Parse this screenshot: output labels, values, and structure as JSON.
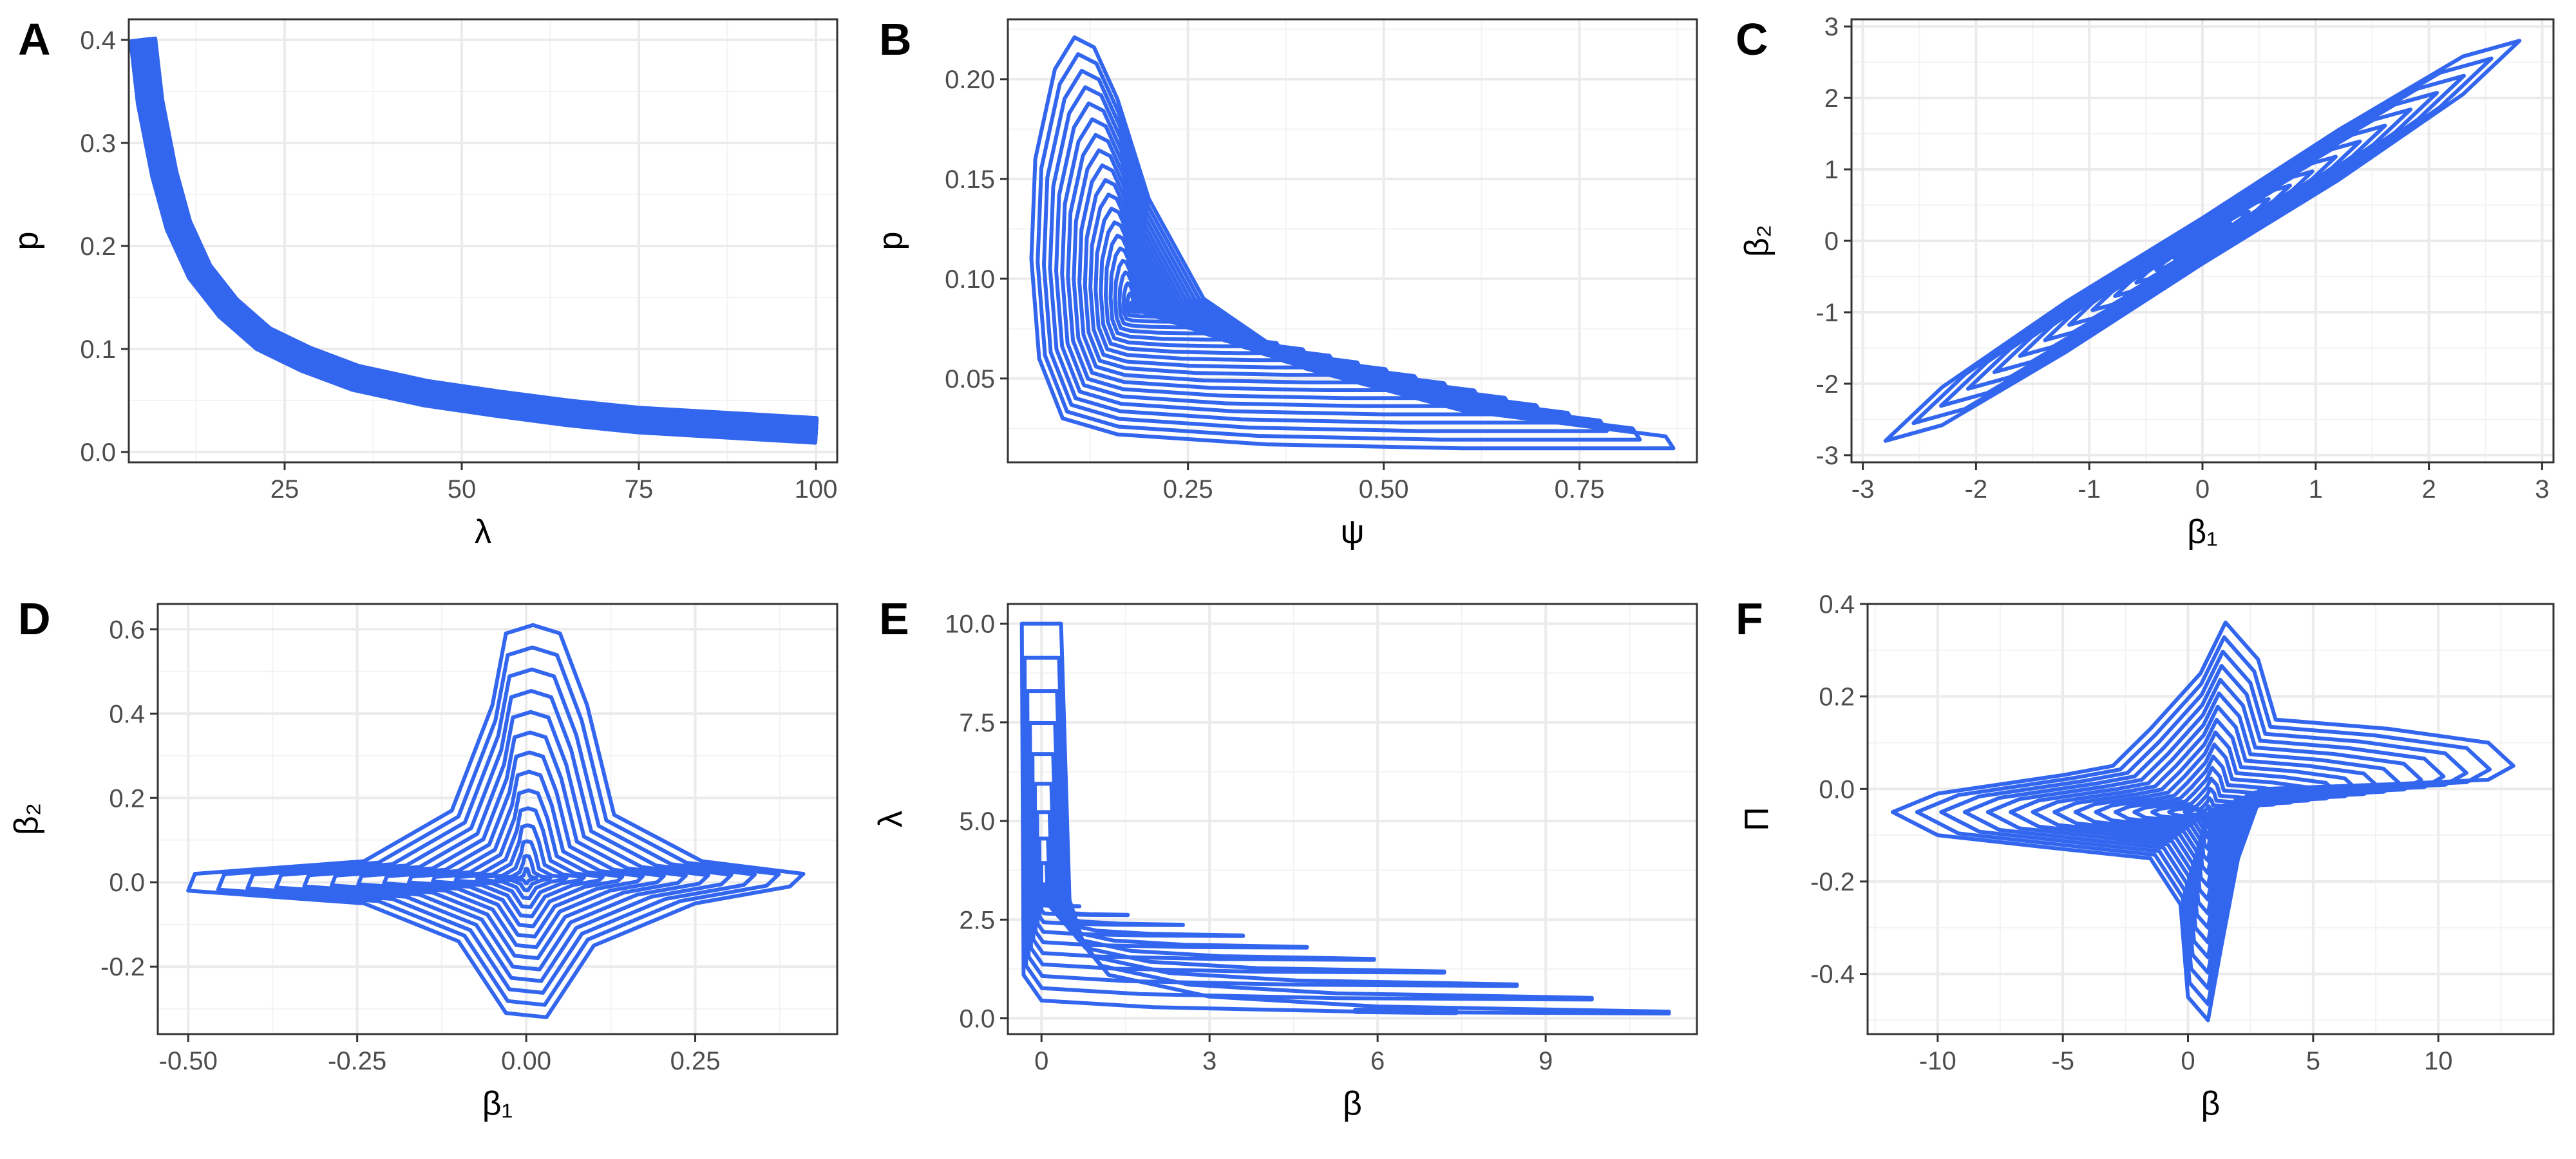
{
  "chart_data": [
    {
      "panel": "A",
      "type": "contour",
      "xlabel": "λ",
      "ylabel": "p",
      "xlim": [
        3,
        103
      ],
      "ylim": [
        -0.01,
        0.42
      ],
      "xticks": [
        25,
        50,
        75,
        100
      ],
      "xtick_labels": [
        "25",
        "50",
        "75",
        "100"
      ],
      "yticks": [
        0.0,
        0.1,
        0.2,
        0.3,
        0.4
      ],
      "ytick_labels": [
        "0.0",
        "0.1",
        "0.2",
        "0.3",
        "0.4"
      ],
      "grid": true,
      "shape": "band",
      "ridge": [
        [
          5,
          0.4
        ],
        [
          6,
          0.34
        ],
        [
          8,
          0.27
        ],
        [
          10,
          0.22
        ],
        [
          13,
          0.175
        ],
        [
          17,
          0.14
        ],
        [
          22,
          0.11
        ],
        [
          28,
          0.09
        ],
        [
          35,
          0.072
        ],
        [
          45,
          0.057
        ],
        [
          55,
          0.047
        ],
        [
          65,
          0.038
        ],
        [
          75,
          0.031
        ],
        [
          85,
          0.027
        ],
        [
          100,
          0.021
        ]
      ],
      "levels": 12,
      "band_width": 0.012,
      "color": "#3366ee"
    },
    {
      "panel": "B",
      "type": "contour",
      "xlabel": "ψ",
      "ylabel": "p",
      "xlim": [
        0.02,
        0.9
      ],
      "ylim": [
        0.008,
        0.23
      ],
      "xticks": [
        0.25,
        0.5,
        0.75
      ],
      "xtick_labels": [
        "0.25",
        "0.50",
        "0.75"
      ],
      "yticks": [
        0.05,
        0.1,
        0.15,
        0.2
      ],
      "ytick_labels": [
        "0.05",
        "0.10",
        "0.15",
        "0.20"
      ],
      "grid": true,
      "shape": "rings",
      "outer": [
        [
          0.105,
          0.221
        ],
        [
          0.08,
          0.205
        ],
        [
          0.055,
          0.16
        ],
        [
          0.05,
          0.11
        ],
        [
          0.06,
          0.06
        ],
        [
          0.09,
          0.03
        ],
        [
          0.16,
          0.022
        ],
        [
          0.35,
          0.017
        ],
        [
          0.6,
          0.015
        ],
        [
          0.87,
          0.015
        ],
        [
          0.86,
          0.021
        ],
        [
          0.6,
          0.034
        ],
        [
          0.4,
          0.055
        ],
        [
          0.27,
          0.09
        ],
        [
          0.2,
          0.14
        ],
        [
          0.16,
          0.19
        ],
        [
          0.13,
          0.216
        ]
      ],
      "center": [
        0.18,
        0.085
      ],
      "levels": 20,
      "color": "#3366ee"
    },
    {
      "panel": "C",
      "type": "contour",
      "xlabel": "β₁",
      "ylabel": "β₂",
      "xlim": [
        -3.1,
        3.1
      ],
      "ylim": [
        -3.1,
        3.1
      ],
      "xticks": [
        -3,
        -2,
        -1,
        0,
        1,
        2,
        3
      ],
      "xtick_labels": [
        "-3",
        "-2",
        "-1",
        "0",
        "1",
        "2",
        "3"
      ],
      "yticks": [
        -3,
        -2,
        -1,
        0,
        1,
        2,
        3
      ],
      "ytick_labels": [
        "-3",
        "-2",
        "-1",
        "0",
        "1",
        "2",
        "3"
      ],
      "grid": true,
      "shape": "rings",
      "outer": [
        [
          -2.8,
          -2.8
        ],
        [
          -2.3,
          -2.58
        ],
        [
          -1.2,
          -1.55
        ],
        [
          0,
          -0.32
        ],
        [
          1.2,
          0.85
        ],
        [
          2.3,
          2.05
        ],
        [
          2.8,
          2.8
        ],
        [
          2.3,
          2.58
        ],
        [
          1.2,
          1.55
        ],
        [
          0,
          0.32
        ],
        [
          -1.2,
          -0.85
        ],
        [
          -2.3,
          -2.05
        ]
      ],
      "center": [
        0,
        0
      ],
      "levels": 14,
      "color": "#3366ee"
    },
    {
      "panel": "D",
      "type": "contour",
      "xlabel": "β₁",
      "ylabel": "β₂",
      "xlim": [
        -0.545,
        0.46
      ],
      "ylim": [
        -0.36,
        0.66
      ],
      "xticks": [
        -0.5,
        -0.25,
        0,
        0.25
      ],
      "xtick_labels": [
        "-0.50",
        "-0.25",
        "0.00",
        "0.25"
      ],
      "yticks": [
        -0.2,
        0,
        0.2,
        0.4,
        0.6
      ],
      "ytick_labels": [
        "-0.2",
        "0.0",
        "0.2",
        "0.4",
        "0.6"
      ],
      "grid": true,
      "shape": "rings",
      "outer": [
        [
          0.01,
          0.61
        ],
        [
          0.05,
          0.59
        ],
        [
          0.09,
          0.42
        ],
        [
          0.13,
          0.16
        ],
        [
          0.26,
          0.05
        ],
        [
          0.41,
          0.02
        ],
        [
          0.39,
          -0.01
        ],
        [
          0.25,
          -0.05
        ],
        [
          0.1,
          -0.15
        ],
        [
          0.03,
          -0.32
        ],
        [
          -0.03,
          -0.31
        ],
        [
          -0.1,
          -0.14
        ],
        [
          -0.24,
          -0.05
        ],
        [
          -0.5,
          -0.02
        ],
        [
          -0.49,
          0.02
        ],
        [
          -0.24,
          0.05
        ],
        [
          -0.11,
          0.17
        ],
        [
          -0.05,
          0.42
        ],
        [
          -0.03,
          0.59
        ]
      ],
      "center": [
        0.0,
        0.01
      ],
      "levels": 14,
      "color": "#3366ee"
    },
    {
      "panel": "E",
      "type": "contour",
      "xlabel": "β",
      "ylabel": "λ",
      "xlim": [
        -0.6,
        11.7
      ],
      "ylim": [
        -0.4,
        10.5
      ],
      "xticks": [
        0,
        3,
        6,
        9
      ],
      "xtick_labels": [
        "0",
        "3",
        "6",
        "9"
      ],
      "yticks": [
        0,
        2.5,
        5,
        7.5,
        10
      ],
      "ytick_labels": [
        "0.0",
        "2.5",
        "5.0",
        "7.5",
        "10.0"
      ],
      "grid": true,
      "shape": "L-band",
      "outer_inner_leg": [
        [
          -0.35,
          10.0
        ],
        [
          -0.32,
          1.1
        ],
        [
          0.0,
          0.45
        ],
        [
          2.0,
          0.28
        ],
        [
          6.0,
          0.16
        ],
        [
          11.2,
          0.12
        ],
        [
          11.2,
          0.17
        ],
        [
          6.0,
          0.3
        ],
        [
          3.0,
          0.55
        ],
        [
          1.2,
          1.1
        ],
        [
          0.75,
          1.9
        ],
        [
          0.5,
          3.0
        ],
        [
          0.35,
          10.0
        ]
      ],
      "center": [
        0.05,
        3.0
      ],
      "levels": 10,
      "small_blob": [
        [
          5.6,
          0.16
        ],
        [
          7.4,
          0.13
        ],
        [
          7.4,
          0.2
        ],
        [
          5.6,
          0.22
        ]
      ],
      "color": "#3366ee"
    },
    {
      "panel": "F",
      "type": "contour",
      "xlabel": "β",
      "ylabel": "Π",
      "xlim": [
        -12.8,
        14.6
      ],
      "ylim": [
        -0.53,
        0.4
      ],
      "xticks": [
        -10,
        -5,
        0,
        5,
        10
      ],
      "xtick_labels": [
        "-10",
        "-5",
        "0",
        "5",
        "10"
      ],
      "yticks": [
        -0.4,
        -0.2,
        0,
        0.2,
        0.4
      ],
      "ytick_labels": [
        "-0.4",
        "-0.2",
        "0.0",
        "0.2",
        "0.4"
      ],
      "grid": true,
      "shape": "cross",
      "outer": [
        [
          1.5,
          0.36
        ],
        [
          2.8,
          0.28
        ],
        [
          3.5,
          0.15
        ],
        [
          8,
          0.13
        ],
        [
          12,
          0.1
        ],
        [
          13,
          0.05
        ],
        [
          12,
          0.02
        ],
        [
          8,
          0.01
        ],
        [
          3,
          0.0
        ],
        [
          2,
          -0.15
        ],
        [
          1.3,
          -0.35
        ],
        [
          0.8,
          -0.5
        ],
        [
          0.0,
          -0.45
        ],
        [
          -0.3,
          -0.25
        ],
        [
          -1.5,
          -0.15
        ],
        [
          -5,
          -0.13
        ],
        [
          -10,
          -0.1
        ],
        [
          -11.8,
          -0.05
        ],
        [
          -10,
          -0.01
        ],
        [
          -5,
          0.03
        ],
        [
          -3,
          0.05
        ],
        [
          -1.5,
          0.13
        ],
        [
          0.5,
          0.25
        ]
      ],
      "center": [
        0.8,
        -0.05
      ],
      "levels": 16,
      "color": "#3366ee"
    }
  ]
}
